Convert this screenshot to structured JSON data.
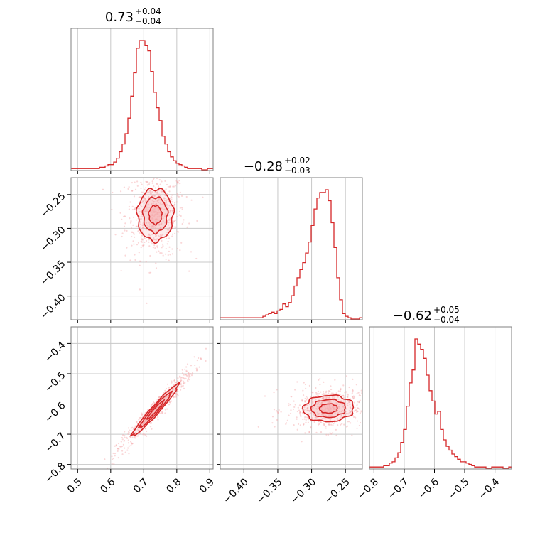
{
  "chart_data": {
    "type": "corner",
    "parameters": [
      {
        "median_label": "0.73",
        "plus_label": "+0.04",
        "minus_label": "−0.04",
        "median": 0.73,
        "plus": 0.04,
        "minus": 0.04,
        "range": [
          0.48,
          0.91
        ],
        "ticks": [
          0.5,
          0.6,
          0.7,
          0.8,
          0.9
        ],
        "tick_labels": [
          "0.5",
          "0.6",
          "0.7",
          "0.8",
          "0.9"
        ],
        "hist_edges_start": 0.48,
        "hist_bin_width": 0.0086,
        "hist_counts": [
          1,
          1,
          1,
          1,
          1,
          1,
          1,
          1,
          1,
          1,
          2,
          2,
          3,
          4,
          4,
          6,
          9,
          14,
          20,
          28,
          40,
          57,
          75,
          94,
          100,
          100,
          96,
          92,
          76,
          60,
          48,
          38,
          26,
          20,
          14,
          10,
          7,
          5,
          4,
          3,
          2,
          1,
          1,
          1,
          1,
          1,
          0,
          0,
          1,
          1
        ]
      },
      {
        "median_label": "−0.28",
        "plus_label": "+0.02",
        "minus_label": "−0.03",
        "median": -0.28,
        "plus": 0.02,
        "minus": 0.03,
        "range": [
          -0.435,
          -0.225
        ],
        "ticks": [
          -0.4,
          -0.35,
          -0.3,
          -0.25
        ],
        "tick_labels": [
          "−0.40",
          "−0.35",
          "−0.30",
          "−0.25"
        ],
        "hist_edges_start": -0.435,
        "hist_bin_width": 0.0042,
        "hist_counts": [
          1,
          1,
          1,
          1,
          1,
          1,
          1,
          1,
          1,
          1,
          1,
          1,
          1,
          1,
          1,
          2,
          3,
          4,
          5,
          4,
          6,
          7,
          11,
          9,
          12,
          17,
          24,
          30,
          36,
          41,
          48,
          56,
          68,
          80,
          88,
          92,
          92,
          94,
          86,
          70,
          52,
          30,
          14,
          4,
          2,
          1,
          0,
          0,
          0,
          1
        ]
      },
      {
        "median_label": "−0.62",
        "plus_label": "+0.05",
        "minus_label": "−0.04",
        "median": -0.62,
        "plus": 0.05,
        "minus": 0.04,
        "range": [
          -0.815,
          -0.345
        ],
        "ticks": [
          -0.8,
          -0.7,
          -0.6,
          -0.5,
          -0.4
        ],
        "tick_labels": [
          "−0.8",
          "−0.7",
          "−0.6",
          "−0.5",
          "−0.4"
        ],
        "hist_edges_start": -0.815,
        "hist_bin_width": 0.0094,
        "hist_counts": [
          1,
          1,
          1,
          1,
          1,
          2,
          2,
          4,
          5,
          8,
          12,
          20,
          30,
          48,
          66,
          76,
          100,
          96,
          92,
          85,
          72,
          60,
          52,
          42,
          44,
          30,
          22,
          17,
          14,
          11,
          9,
          7,
          5,
          5,
          4,
          3,
          2,
          1,
          1,
          1,
          1,
          0,
          0,
          1,
          1,
          1,
          1,
          0,
          0,
          1
        ]
      }
    ],
    "pairs": [
      {
        "x_param": 0,
        "y_param": 1,
        "mean": [
          0.735,
          -0.28
        ],
        "sd": [
          0.035,
          0.025
        ],
        "corr": 0.0,
        "contour_levels_sd": [
          0.55,
          1.05,
          1.55
        ]
      },
      {
        "x_param": 0,
        "y_param": 2,
        "mean": [
          0.735,
          -0.62
        ],
        "sd": [
          0.045,
          0.055
        ],
        "corr": 0.97,
        "contour_levels_sd": [
          0.55,
          1.05,
          1.55
        ]
      },
      {
        "x_param": 1,
        "y_param": 2,
        "mean": [
          -0.275,
          -0.615
        ],
        "sd": [
          0.024,
          0.028
        ],
        "corr": 0.05,
        "contour_levels_sd": [
          0.55,
          1.05,
          1.55
        ]
      }
    ],
    "grid": true,
    "color": "#d62728",
    "fill_color": "#f4a6a8"
  }
}
